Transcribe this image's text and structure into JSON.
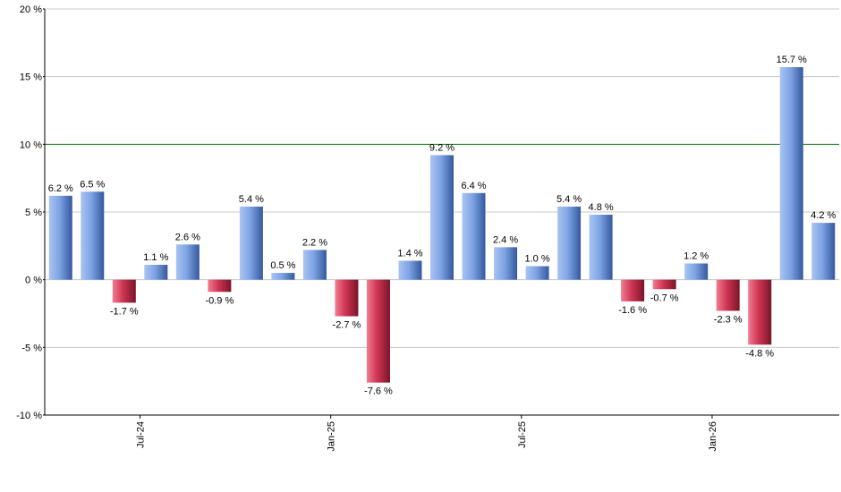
{
  "chart_data": {
    "type": "bar",
    "title": "",
    "xlabel": "",
    "ylabel": "",
    "ylim": [
      -10,
      20
    ],
    "yticks": [
      -10,
      -5,
      0,
      5,
      10,
      15,
      20
    ],
    "ytick_labels": [
      "-10 %",
      "-5 %",
      "0 %",
      "5 %",
      "10 %",
      "15 %",
      "20 %"
    ],
    "xticks": [
      {
        "label": "Jul-24",
        "index": 2.5
      },
      {
        "label": "Jan-25",
        "index": 8.5
      },
      {
        "label": "Jul-25",
        "index": 14.5
      },
      {
        "label": "Jan-26",
        "index": 20.5
      }
    ],
    "grid": true,
    "reference_line": 10,
    "values": [
      6.2,
      6.5,
      -1.7,
      1.1,
      2.6,
      -0.9,
      5.4,
      0.5,
      2.2,
      -2.7,
      -7.6,
      1.4,
      9.2,
      6.4,
      2.4,
      1.0,
      5.4,
      4.8,
      -1.6,
      -0.7,
      1.2,
      -2.3,
      -4.8,
      15.7,
      4.2
    ],
    "labels": [
      "6.2 %",
      "6.5 %",
      "-1.7 %",
      "1.1 %",
      "2.6 %",
      "-0.9 %",
      "5.4 %",
      "0.5 %",
      "2.2 %",
      "-2.7 %",
      "-7.6 %",
      "1.4 %",
      "9.2 %",
      "6.4 %",
      "2.4 %",
      "1.0 %",
      "5.4 %",
      "4.8 %",
      "-1.6 %",
      "-0.7 %",
      "1.2 %",
      "-2.3 %",
      "-4.8 %",
      "15.7 %",
      "4.2 %"
    ],
    "colors": {
      "positive": "#6f95d8",
      "negative": "#c83450",
      "reference_line": "#1a7a1a",
      "grid": "#c8c8c8",
      "axis": "#000000"
    }
  }
}
